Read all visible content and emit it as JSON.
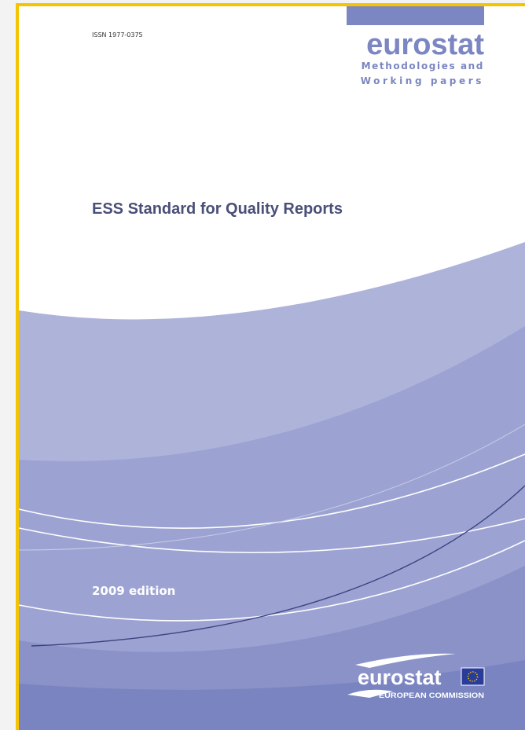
{
  "header": {
    "issn": "ISSN 1977-0375",
    "brand": "eurostat",
    "series_line1": "Methodologies and",
    "series_line2": "Working papers"
  },
  "title": "ESS Standard for Quality Reports",
  "edition": "2009 edition",
  "footer": {
    "brand": "eurostat",
    "org": "EUROPEAN COMMISSION"
  }
}
